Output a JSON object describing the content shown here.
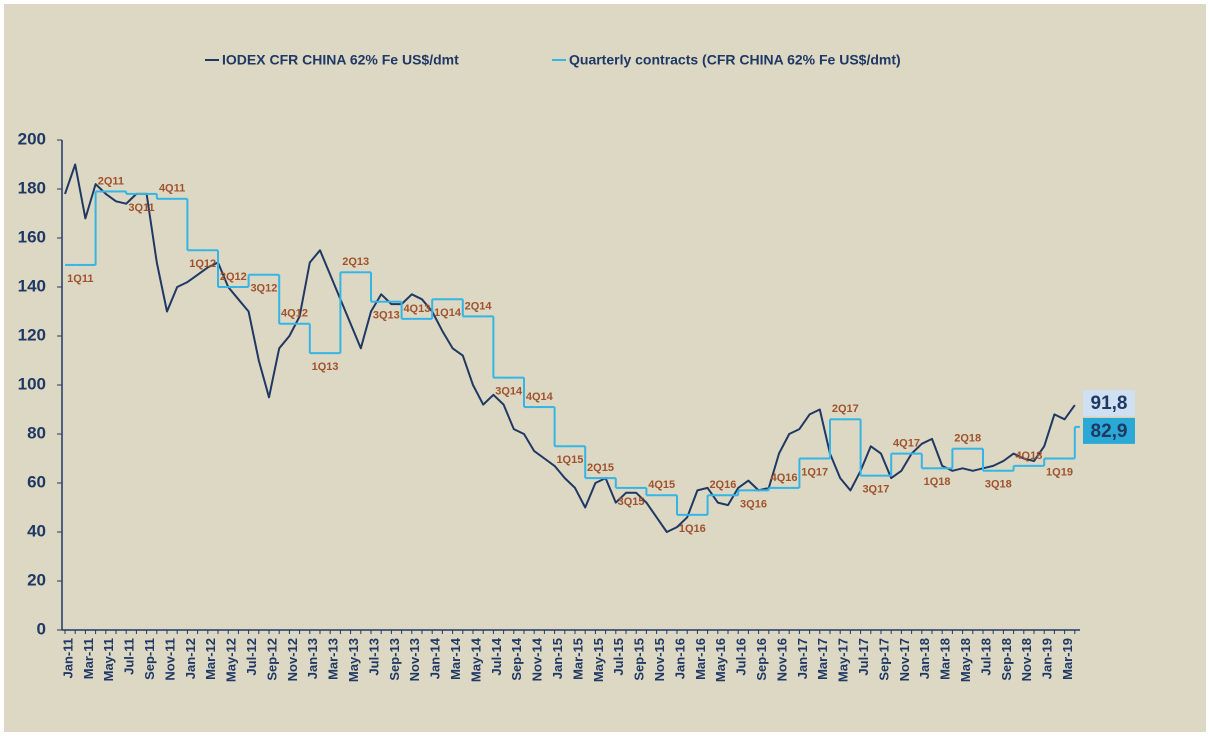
{
  "chart_data": {
    "type": "line",
    "categories": [
      "Jan-11",
      null,
      "Mar-11",
      null,
      "May-11",
      null,
      "Jul-11",
      null,
      "Sep-11",
      null,
      "Nov-11",
      null,
      "Jan-12",
      null,
      "Mar-12",
      null,
      "May-12",
      null,
      "Jul-12",
      null,
      "Sep-12",
      null,
      "Nov-12",
      null,
      "Jan-13",
      null,
      "Mar-13",
      null,
      "May-13",
      null,
      "Jul-13",
      null,
      "Sep-13",
      null,
      "Nov-13",
      null,
      "Jan-14",
      null,
      "Mar-14",
      null,
      "May-14",
      null,
      "Jul-14",
      null,
      "Sep-14",
      null,
      "Nov-14",
      null,
      "Jan-15",
      null,
      "Mar-15",
      null,
      "May-15",
      null,
      "Jul-15",
      null,
      "Sep-15",
      null,
      "Nov-15",
      null,
      "Jan-16",
      null,
      "Mar-16",
      null,
      "May-16",
      null,
      "Jul-16",
      null,
      "Sep-16",
      null,
      "Nov-16",
      null,
      "Jan-17",
      null,
      "Mar-17",
      null,
      "May-17",
      null,
      "Jul-17",
      null,
      "Sep-17",
      null,
      "Nov-17",
      null,
      "Jan-18",
      null,
      "Mar-18",
      null,
      "May-18",
      null,
      "Jul-18",
      null,
      "Sep-18",
      null,
      "Nov-18",
      null,
      "Jan-19",
      null,
      "Mar-19",
      null
    ],
    "series": [
      {
        "name": "IODEX CFR CHINA 62% Fe US$/dmt",
        "color": "#1f3864",
        "end_label": "91,8",
        "values": [
          178,
          190,
          168,
          182,
          178,
          175,
          174,
          178,
          178,
          150,
          130,
          140,
          142,
          145,
          148,
          150,
          140,
          135,
          130,
          110,
          95,
          115,
          120,
          128,
          150,
          155,
          145,
          135,
          125,
          115,
          130,
          137,
          133,
          133,
          137,
          135,
          130,
          122,
          115,
          112,
          100,
          92,
          96,
          92,
          82,
          80,
          73,
          70,
          67,
          62,
          58,
          50,
          60,
          62,
          52,
          56,
          56,
          52,
          46,
          40,
          42,
          46,
          57,
          58,
          52,
          51,
          58,
          61,
          57,
          58,
          72,
          80,
          82,
          88,
          90,
          72,
          62,
          57,
          65,
          75,
          72,
          62,
          65,
          72,
          76,
          78,
          67,
          65,
          66,
          65,
          66,
          67,
          69,
          72,
          70,
          69,
          75,
          88,
          86,
          91.8
        ]
      },
      {
        "name": "Quarterly contracts (CFR CHINA 62% Fe US$/dmt)",
        "color": "#33b5e5",
        "step": true,
        "end_label": "82,9",
        "values": [
          149,
          149,
          149,
          179,
          179,
          179,
          178,
          178,
          178,
          176,
          176,
          176,
          155,
          155,
          155,
          140,
          140,
          140,
          145,
          145,
          145,
          125,
          125,
          125,
          113,
          113,
          113,
          146,
          146,
          146,
          134,
          134,
          134,
          127,
          127,
          127,
          135,
          135,
          135,
          128,
          128,
          128,
          103,
          103,
          103,
          91,
          91,
          91,
          75,
          75,
          75,
          62,
          62,
          62,
          58,
          58,
          58,
          55,
          55,
          55,
          47,
          47,
          47,
          55,
          55,
          55,
          57,
          57,
          57,
          58,
          58,
          58,
          70,
          70,
          70,
          86,
          86,
          86,
          63,
          63,
          63,
          72,
          72,
          72,
          66,
          66,
          66,
          74,
          74,
          74,
          65,
          65,
          65,
          67,
          67,
          67,
          70,
          70,
          70,
          82.9
        ]
      }
    ],
    "quarter_labels": [
      "1Q11",
      "2Q11",
      "3Q11",
      "4Q11",
      "1Q12",
      "2Q12",
      "3Q12",
      "4Q12",
      "1Q13",
      "2Q13",
      "3Q13",
      "4Q13",
      "1Q14",
      "2Q14",
      "3Q14",
      "4Q14",
      "1Q15",
      "2Q15",
      "3Q15",
      "4Q15",
      "1Q16",
      "2Q16",
      "3Q16",
      "4Q16",
      "1Q17",
      "2Q17",
      "3Q17",
      "4Q17",
      "1Q18",
      "2Q18",
      "3Q18",
      "4Q18",
      "1Q19"
    ],
    "ylim": [
      0,
      200
    ],
    "yticks": [
      0,
      20,
      40,
      60,
      80,
      100,
      120,
      140,
      160,
      180,
      200
    ],
    "grid": false,
    "legend": "top"
  }
}
